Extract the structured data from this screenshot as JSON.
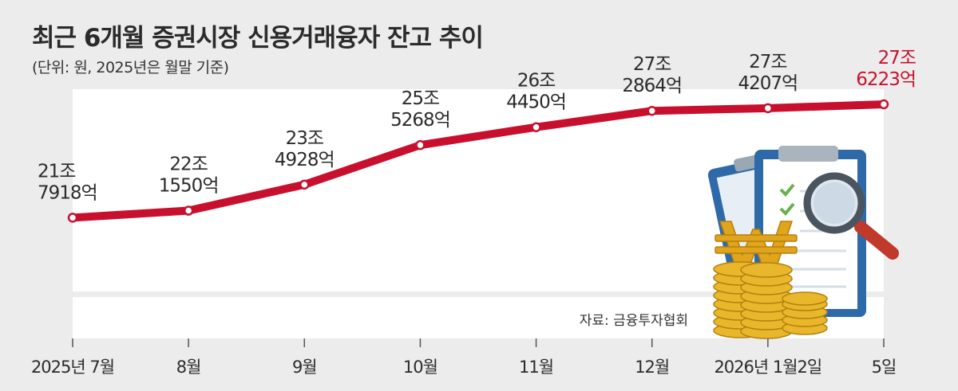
{
  "title": "최근 6개월 증권시장 신용거래융자 잔고 추이",
  "subtitle": "(단위: 원, 2025년은 월말 기준)",
  "source": "자료: 금융투자협회",
  "colors": {
    "line": "#c8102e",
    "highlight": "#c8102e",
    "text": "#2b2b2b",
    "plot_bg": "#ffffff",
    "bg": "#ececec"
  },
  "illustration": "gold-won-coins-clipboard-magnifier-icon",
  "chart_data": {
    "type": "line",
    "title": "최근 6개월 증권시장 신용거래융자 잔고 추이",
    "subtitle": "(단위: 원, 2025년은 월말 기준)",
    "xlabel": "",
    "ylabel": "",
    "categories": [
      "2025년 7월",
      "8월",
      "9월",
      "10월",
      "11월",
      "12월",
      "2026년 1월2일",
      "5일"
    ],
    "values": [
      21.7918,
      22.155,
      23.4928,
      25.5268,
      26.445,
      27.2864,
      27.4207,
      27.6223
    ],
    "value_labels": [
      [
        "21조",
        "7918억"
      ],
      [
        "22조",
        "1550억"
      ],
      [
        "23조",
        "4928억"
      ],
      [
        "25조",
        "5268억"
      ],
      [
        "26조",
        "4450억"
      ],
      [
        "27조",
        "2864억"
      ],
      [
        "27조",
        "4207억"
      ],
      [
        "27조",
        "6223억"
      ]
    ],
    "highlight_index": 7,
    "ylim": [
      18.0,
      28.4
    ],
    "grid": false,
    "legend": "none"
  }
}
